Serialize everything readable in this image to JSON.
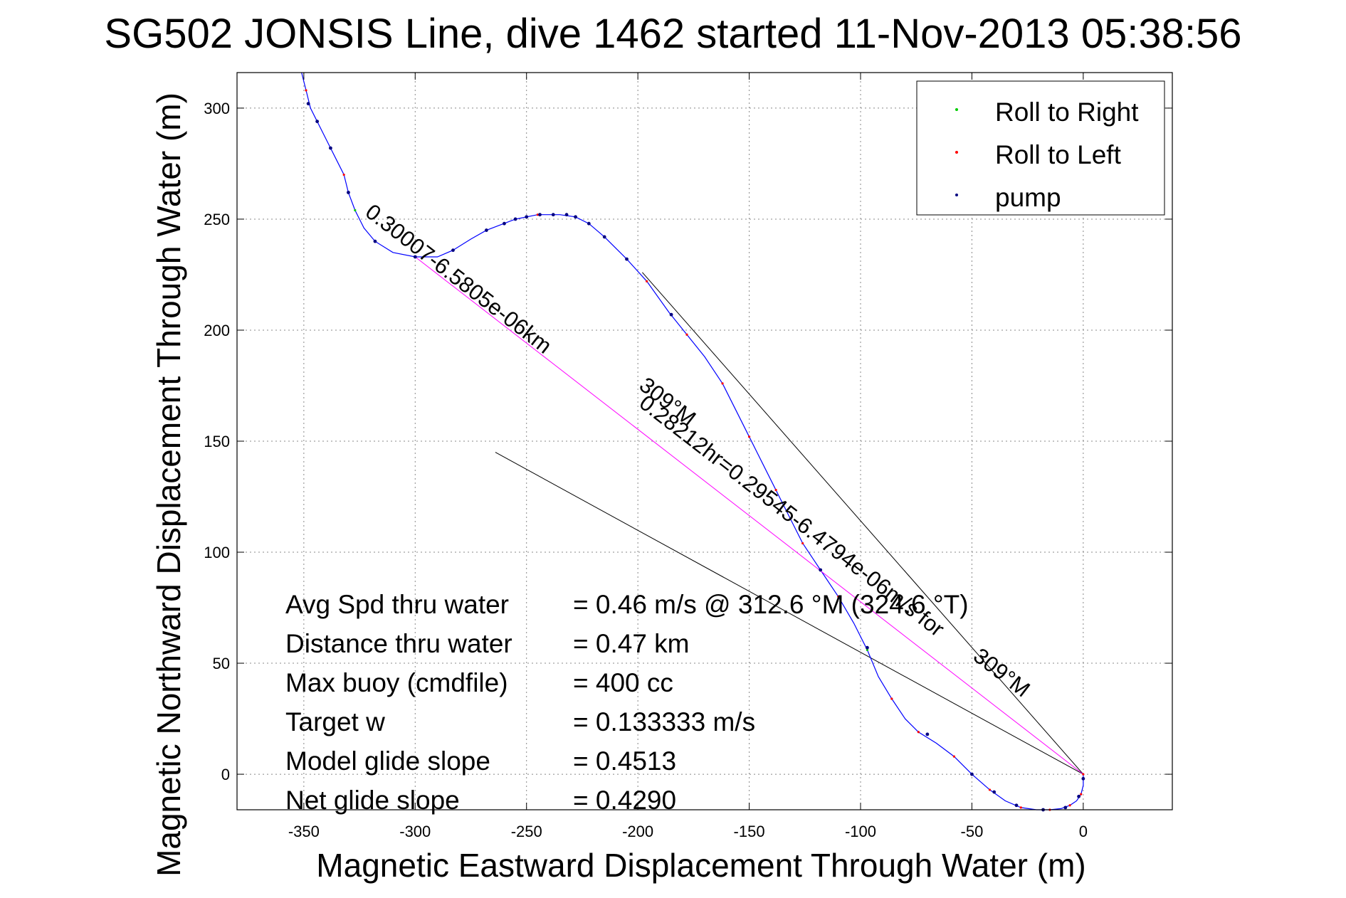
{
  "title": "SG502 JONSIS Line, dive 1462 started 11-Nov-2013 05:38:56",
  "chart_data": {
    "type": "line",
    "xlabel": "Magnetic Eastward Displacement Through Water (m)",
    "ylabel": "Magnetic Northward Displacement Through Water (m)",
    "xlim": [
      -380,
      40
    ],
    "ylim": [
      -16,
      316
    ],
    "xticks": [
      -350,
      -300,
      -250,
      -200,
      -150,
      -100,
      -50,
      0
    ],
    "yticks": [
      0,
      50,
      100,
      150,
      200,
      250,
      300
    ],
    "grid": true,
    "legend_position": "top-right",
    "colors": {
      "track": "#0000ff",
      "roll_right": "#00cc00",
      "roll_left": "#ff0000",
      "pump": "#000080",
      "net_line": "#ff00ff",
      "bounds": "#000000"
    },
    "legend": [
      {
        "label": "Roll to Right",
        "color": "#00cc00"
      },
      {
        "label": "Roll to Left",
        "color": "#ff0000"
      },
      {
        "label": "pump",
        "color": "#000080"
      }
    ],
    "series": [
      {
        "kind": "track",
        "points": [
          [
            0,
            0
          ],
          [
            0,
            -5
          ],
          [
            -1,
            -9
          ],
          [
            -3,
            -12
          ],
          [
            -6,
            -14
          ],
          [
            -10,
            -15.5
          ],
          [
            -15,
            -16
          ],
          [
            -21,
            -16
          ],
          [
            -28,
            -15
          ],
          [
            -35,
            -12
          ],
          [
            -42,
            -7
          ],
          [
            -50,
            0
          ],
          [
            -58,
            8
          ],
          [
            -66,
            14
          ],
          [
            -74,
            19
          ],
          [
            -80,
            25
          ],
          [
            -86,
            34
          ],
          [
            -92,
            44
          ],
          [
            -97,
            56
          ],
          [
            -103,
            68
          ],
          [
            -110,
            80
          ],
          [
            -118,
            92
          ],
          [
            -126,
            104
          ],
          [
            -132,
            116
          ],
          [
            -138,
            128
          ],
          [
            -144,
            140
          ],
          [
            -150,
            152
          ],
          [
            -156,
            164
          ],
          [
            -162,
            176
          ],
          [
            -170,
            188
          ],
          [
            -178,
            198
          ],
          [
            -186,
            208
          ],
          [
            -196,
            222
          ],
          [
            -205,
            232
          ],
          [
            -215,
            242
          ],
          [
            -222,
            248
          ],
          [
            -228,
            251
          ],
          [
            -235,
            252
          ],
          [
            -245,
            252
          ],
          [
            -255,
            250
          ],
          [
            -268,
            245
          ],
          [
            -275,
            241
          ],
          [
            -283,
            236
          ],
          [
            -290,
            233
          ],
          [
            -300,
            233
          ],
          [
            -310,
            235
          ],
          [
            -318,
            240
          ],
          [
            -323,
            246
          ],
          [
            -327,
            254
          ],
          [
            -330,
            262
          ],
          [
            -332,
            270
          ],
          [
            -335,
            276
          ],
          [
            -338,
            282
          ],
          [
            -341,
            288
          ],
          [
            -344,
            294
          ],
          [
            -347,
            300
          ],
          [
            -349,
            308
          ],
          [
            -351,
            316
          ]
        ]
      },
      {
        "kind": "markers",
        "points": [
          [
            0,
            -2
          ],
          [
            -2,
            -10
          ],
          [
            -8,
            -15
          ],
          [
            -18,
            -16
          ],
          [
            -30,
            -14
          ],
          [
            -40,
            -8
          ],
          [
            -50,
            0
          ],
          [
            -70,
            18
          ],
          [
            -97,
            57
          ],
          [
            -118,
            92
          ],
          [
            -185,
            207
          ],
          [
            -205,
            232
          ],
          [
            -215,
            242
          ],
          [
            -222,
            248
          ],
          [
            -228,
            251
          ],
          [
            -232,
            252
          ],
          [
            -238,
            252
          ],
          [
            -244,
            252
          ],
          [
            -250,
            251
          ],
          [
            -255,
            250
          ],
          [
            -260,
            248
          ],
          [
            -268,
            245
          ],
          [
            -283,
            236
          ],
          [
            -300,
            233
          ],
          [
            -318,
            240
          ],
          [
            -330,
            262
          ],
          [
            -338,
            282
          ],
          [
            -344,
            294
          ],
          [
            -348,
            302
          ]
        ]
      },
      {
        "kind": "net-line",
        "points": [
          [
            0,
            0
          ],
          [
            -300,
            233
          ]
        ]
      },
      {
        "kind": "bound-line",
        "points": [
          [
            0,
            0
          ],
          [
            -264,
            145
          ]
        ]
      },
      {
        "kind": "bound-line",
        "points": [
          [
            0,
            0
          ],
          [
            -198,
            226
          ]
        ]
      }
    ],
    "annotations": [
      {
        "text": "0.30007-6.5805e-06km",
        "x": -323,
        "y": 252,
        "rotation": 37.8
      },
      {
        "text": "309°M",
        "x": -200,
        "y": 174,
        "rotation": 37.8
      },
      {
        "text": "0.28212hr=0.29545-6.4794e-06m/s for",
        "x": -200,
        "y": 166,
        "rotation": 37.8
      },
      {
        "text": "309°M",
        "x": -50,
        "y": 52,
        "rotation": 37.8
      }
    ],
    "stats": [
      {
        "label": "Avg Spd thru water",
        "value": "=  0.46 m/s @ 312.6 °M (324.6 °T)"
      },
      {
        "label": "Distance thru water",
        "value": "=  0.47 km"
      },
      {
        "label": "Max buoy (cmdfile)",
        "value": "= 400 cc"
      },
      {
        "label": "Target w",
        "value": "= 0.133333 m/s"
      },
      {
        "label": "Model glide slope",
        "value": "= 0.4513"
      },
      {
        "label": "Net glide slope",
        "value": "= 0.4290"
      }
    ]
  }
}
